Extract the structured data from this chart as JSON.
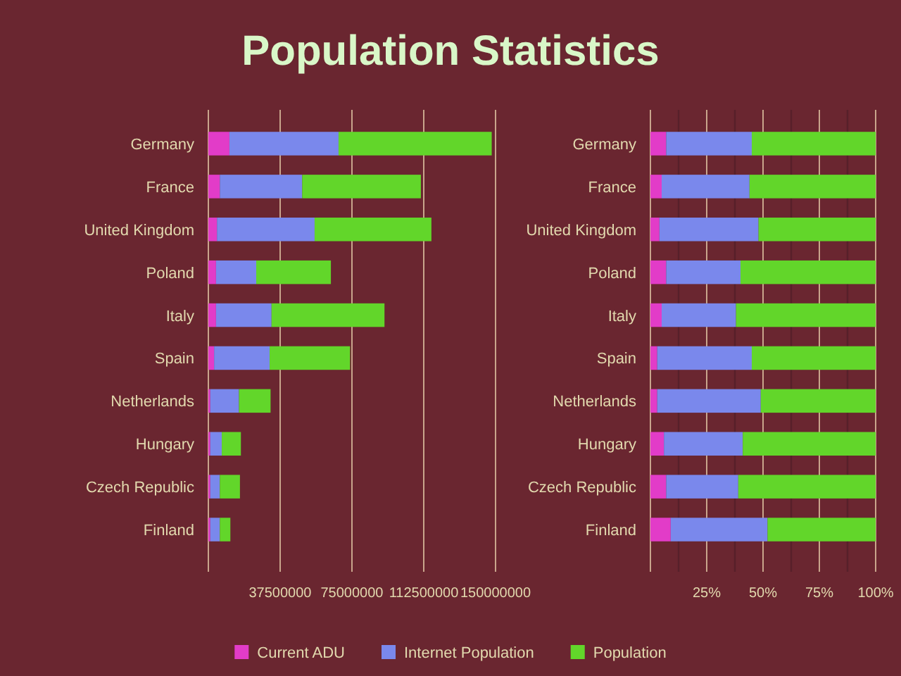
{
  "chart_data": [
    {
      "type": "bar",
      "title": "Population Statistics",
      "orientation": "horizontal",
      "stacked": true,
      "categories": [
        "Germany",
        "France",
        "United Kingdom",
        "Poland",
        "Italy",
        "Spain",
        "Netherlands",
        "Hungary",
        "Czech Republic",
        "Finland"
      ],
      "series": [
        {
          "name": "Current ADU",
          "color": "#e23cc8",
          "values": [
            11000000,
            6000000,
            4500000,
            4000000,
            4000000,
            3000000,
            1000000,
            1000000,
            1000000,
            1000000
          ]
        },
        {
          "name": "Internet Population",
          "color": "#7a88ec",
          "values": [
            57000000,
            43000000,
            51000000,
            21000000,
            29000000,
            29000000,
            15000000,
            6000000,
            5000000,
            5000000
          ]
        },
        {
          "name": "Population",
          "color": "#62d62a",
          "values": [
            80000000,
            62000000,
            61000000,
            39000000,
            59000000,
            42000000,
            16500000,
            10000000,
            10500000,
            5500000
          ]
        }
      ],
      "xlim": [
        0,
        150000000
      ],
      "xticks": [
        37500000,
        75000000,
        112500000,
        150000000
      ],
      "grid": "x",
      "legend": "bottom"
    },
    {
      "type": "bar",
      "orientation": "horizontal",
      "stacked": true,
      "categories": [
        "Germany",
        "France",
        "United Kingdom",
        "Poland",
        "Italy",
        "Spain",
        "Netherlands",
        "Hungary",
        "Czech Republic",
        "Finland"
      ],
      "series": [
        {
          "color": "#e23cc8",
          "values": [
            7,
            5,
            4,
            7,
            5,
            3,
            3,
            6,
            7,
            9
          ]
        },
        {
          "color": "#7a88ec",
          "values": [
            38,
            39,
            44,
            33,
            33,
            42,
            46,
            35,
            32,
            43
          ]
        },
        {
          "color": "#62d62a",
          "values": [
            55,
            56,
            52,
            60,
            62,
            55,
            51,
            59,
            61,
            48
          ]
        }
      ],
      "xlim": [
        0,
        100
      ],
      "xticks": [
        {
          "value": 12.5,
          "label": null
        },
        {
          "value": 25,
          "label": "25%"
        },
        {
          "value": 37.5,
          "label": null
        },
        {
          "value": 50,
          "label": "50%"
        },
        {
          "value": 62.5,
          "label": null
        },
        {
          "value": 75,
          "label": "75%"
        },
        {
          "value": 87.5,
          "label": null
        },
        {
          "value": 100,
          "label": "100%"
        }
      ],
      "grid": "x"
    }
  ]
}
